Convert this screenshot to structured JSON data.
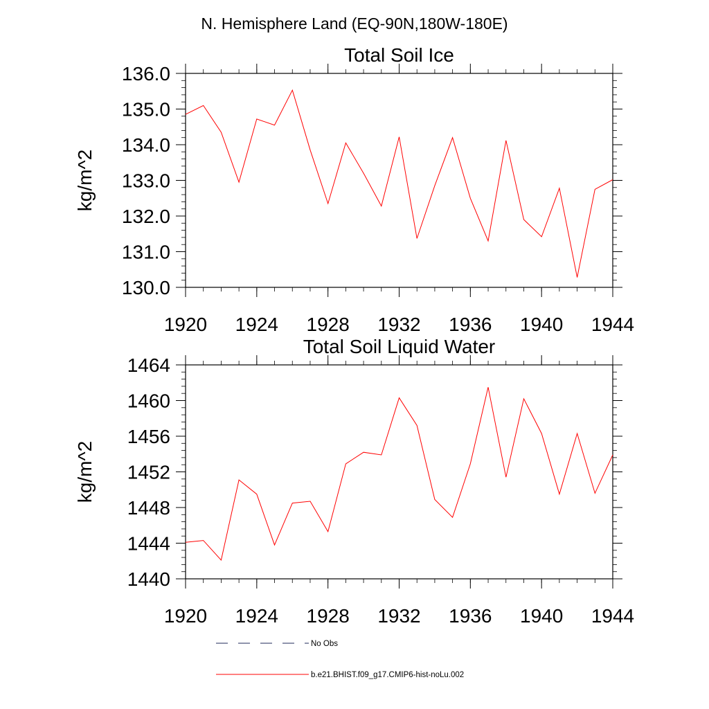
{
  "figure": {
    "title": "N. Hemisphere Land (EQ-90N,180W-180E)"
  },
  "legend": {
    "entries": [
      {
        "label": "No Obs",
        "style": "dashed",
        "color": "#1f2a5a"
      },
      {
        "label": "b.e21.BHIST.f09_g17.CMIP6-hist-noLu.002",
        "style": "solid",
        "color": "#ff0000"
      }
    ]
  },
  "chart_data": [
    {
      "type": "line",
      "title": "Total Soil Ice",
      "ylabel": "kg/m^2",
      "xlabel": "",
      "xlim": [
        1920,
        1944
      ],
      "ylim": [
        130,
        136
      ],
      "xticks": [
        1920,
        1924,
        1928,
        1932,
        1936,
        1940,
        1944
      ],
      "yticks": [
        130,
        131,
        132,
        133,
        134,
        135,
        136
      ],
      "ytick_labels": [
        "130.0",
        "131.0",
        "132.0",
        "133.0",
        "134.0",
        "135.0",
        "136.0"
      ],
      "grid": false,
      "series": [
        {
          "color": "#ff0000",
          "x": [
            1920,
            1921,
            1922,
            1923,
            1924,
            1925,
            1926,
            1927,
            1928,
            1929,
            1930,
            1931,
            1932,
            1933,
            1934,
            1935,
            1936,
            1937,
            1938,
            1939,
            1940,
            1941,
            1942,
            1943,
            1944
          ],
          "y": [
            134.85,
            135.1,
            134.35,
            132.95,
            134.72,
            134.55,
            135.53,
            133.85,
            132.35,
            134.05,
            133.2,
            132.28,
            134.22,
            131.37,
            132.85,
            134.2,
            132.5,
            131.3,
            134.12,
            131.9,
            131.42,
            132.78,
            130.28,
            132.75,
            133.02
          ]
        }
      ]
    },
    {
      "type": "line",
      "title": "Total Soil Liquid Water",
      "ylabel": "kg/m^2",
      "xlabel": "",
      "xlim": [
        1920,
        1944
      ],
      "ylim": [
        1440,
        1464
      ],
      "xticks": [
        1920,
        1924,
        1928,
        1932,
        1936,
        1940,
        1944
      ],
      "yticks": [
        1440,
        1444,
        1448,
        1452,
        1456,
        1460,
        1464
      ],
      "ytick_labels": [
        "1440",
        "1444",
        "1448",
        "1452",
        "1456",
        "1460",
        "1464"
      ],
      "grid": false,
      "series": [
        {
          "color": "#ff0000",
          "x": [
            1920,
            1921,
            1922,
            1923,
            1924,
            1925,
            1926,
            1927,
            1928,
            1929,
            1930,
            1931,
            1932,
            1933,
            1934,
            1935,
            1936,
            1937,
            1938,
            1939,
            1940,
            1941,
            1942,
            1943,
            1944
          ],
          "y": [
            1444.1,
            1444.3,
            1442.1,
            1451.1,
            1449.5,
            1443.8,
            1448.5,
            1448.7,
            1445.3,
            1452.9,
            1454.2,
            1453.9,
            1460.3,
            1457.2,
            1448.9,
            1446.9,
            1452.9,
            1461.5,
            1451.4,
            1460.2,
            1456.3,
            1449.5,
            1456.3,
            1449.6,
            1453.9
          ]
        }
      ]
    }
  ]
}
